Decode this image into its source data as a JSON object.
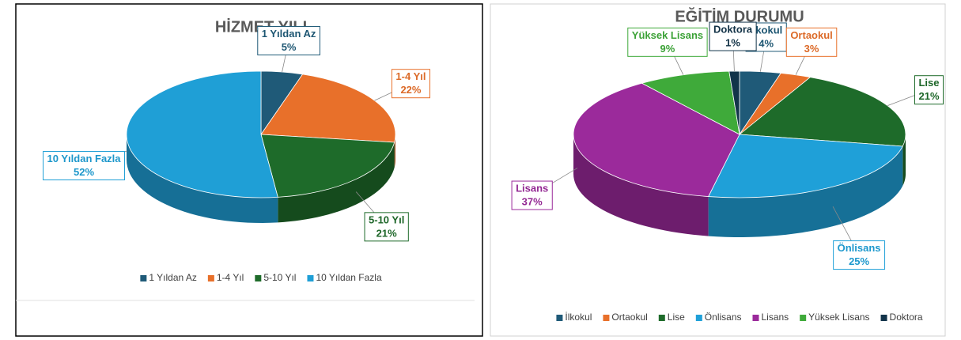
{
  "chart_data": [
    {
      "type": "pie",
      "title": "HİZMET YILI",
      "categories": [
        "1 Yıldan Az",
        "1-4 Yıl",
        "5-10 Yıl",
        "10 Yıldan Fazla"
      ],
      "values": [
        5,
        22,
        21,
        52
      ],
      "value_labels": [
        "5%",
        "22%",
        "21%",
        "52%"
      ],
      "colors": [
        "#1f5a78",
        "#e8702a",
        "#1e6b2a",
        "#1f9fd6"
      ],
      "legend": "bottom"
    },
    {
      "type": "pie",
      "title": "EĞİTİM DURUMU",
      "categories": [
        "İlkokul",
        "Ortaokul",
        "Lise",
        "Önlisans",
        "Lisans",
        "Yüksek Lisans",
        "Doktora"
      ],
      "values": [
        4,
        3,
        21,
        25,
        37,
        9,
        1
      ],
      "value_labels": [
        "4%",
        "3%",
        "21%",
        "25%",
        "37%",
        "9%",
        "1%"
      ],
      "colors": [
        "#1f5a78",
        "#e8702a",
        "#1e6b2a",
        "#1fa0d8",
        "#9b2a9b",
        "#3faa3a",
        "#12344a"
      ],
      "legend": "bottom"
    }
  ]
}
